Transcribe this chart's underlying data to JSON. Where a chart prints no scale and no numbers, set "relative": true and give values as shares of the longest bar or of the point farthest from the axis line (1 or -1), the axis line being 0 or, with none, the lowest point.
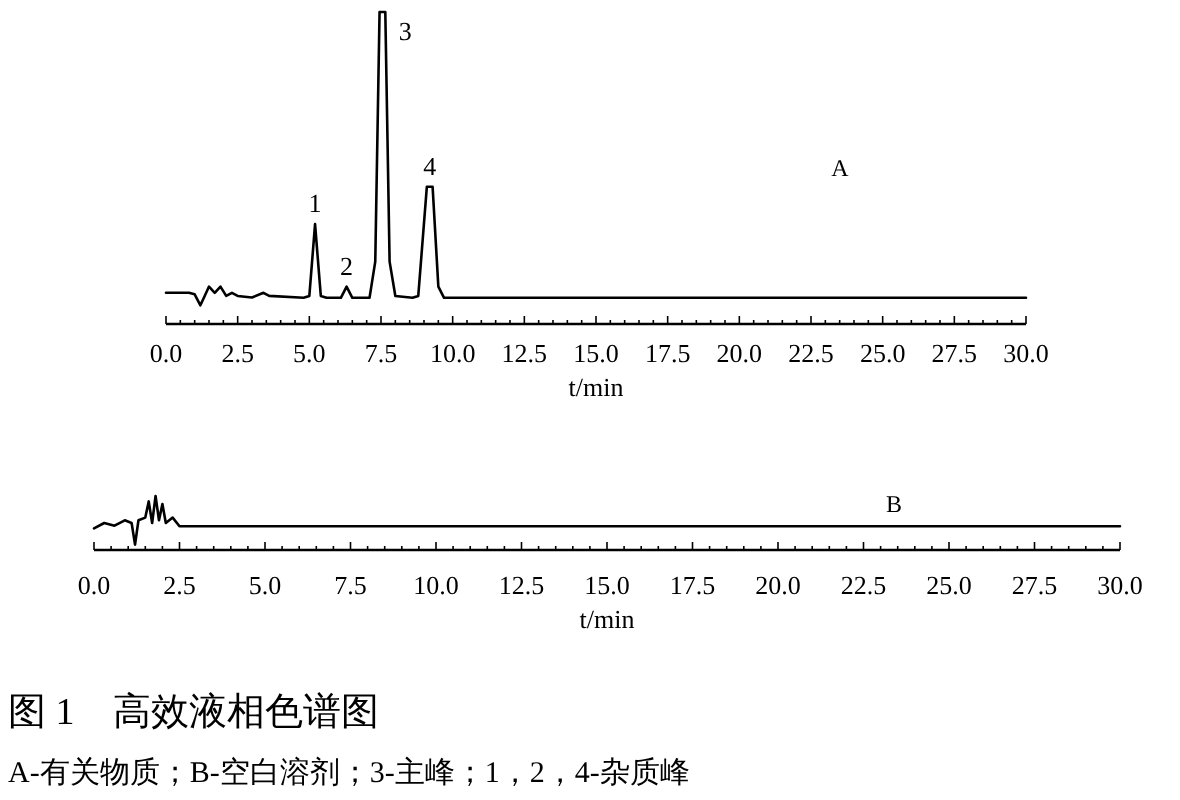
{
  "chart_data": [
    {
      "type": "line",
      "relative": true,
      "xlabel": "t/min",
      "xlim": [
        0,
        30
      ],
      "xticks": [
        {
          "value": 0,
          "label": "0.0"
        },
        {
          "value": 0.5,
          "label": null
        },
        {
          "value": 1,
          "label": null
        },
        {
          "value": 1.5,
          "label": null
        },
        {
          "value": 2,
          "label": null
        },
        {
          "value": 2.5,
          "label": "2.5"
        },
        {
          "value": 3,
          "label": null
        },
        {
          "value": 3.5,
          "label": null
        },
        {
          "value": 4,
          "label": null
        },
        {
          "value": 4.5,
          "label": null
        },
        {
          "value": 5,
          "label": "5.0"
        },
        {
          "value": 5.5,
          "label": null
        },
        {
          "value": 6,
          "label": null
        },
        {
          "value": 6.5,
          "label": null
        },
        {
          "value": 7,
          "label": null
        },
        {
          "value": 7.5,
          "label": "7.5"
        },
        {
          "value": 8,
          "label": null
        },
        {
          "value": 8.5,
          "label": null
        },
        {
          "value": 9,
          "label": null
        },
        {
          "value": 9.5,
          "label": null
        },
        {
          "value": 10,
          "label": "10.0"
        },
        {
          "value": 10.5,
          "label": null
        },
        {
          "value": 11,
          "label": null
        },
        {
          "value": 11.5,
          "label": null
        },
        {
          "value": 12,
          "label": null
        },
        {
          "value": 12.5,
          "label": "12.5"
        },
        {
          "value": 13,
          "label": null
        },
        {
          "value": 13.5,
          "label": null
        },
        {
          "value": 14,
          "label": null
        },
        {
          "value": 14.5,
          "label": null
        },
        {
          "value": 15,
          "label": "15.0"
        },
        {
          "value": 15.5,
          "label": null
        },
        {
          "value": 16,
          "label": null
        },
        {
          "value": 16.5,
          "label": null
        },
        {
          "value": 17,
          "label": null
        },
        {
          "value": 17.5,
          "label": "17.5"
        },
        {
          "value": 18,
          "label": null
        },
        {
          "value": 18.5,
          "label": null
        },
        {
          "value": 19,
          "label": null
        },
        {
          "value": 19.5,
          "label": null
        },
        {
          "value": 20,
          "label": "20.0"
        },
        {
          "value": 20.5,
          "label": null
        },
        {
          "value": 21,
          "label": null
        },
        {
          "value": 21.5,
          "label": null
        },
        {
          "value": 22,
          "label": null
        },
        {
          "value": 22.5,
          "label": "22.5"
        },
        {
          "value": 23,
          "label": null
        },
        {
          "value": 23.5,
          "label": null
        },
        {
          "value": 24,
          "label": null
        },
        {
          "value": 24.5,
          "label": null
        },
        {
          "value": 25,
          "label": "25.0"
        },
        {
          "value": 25.5,
          "label": null
        },
        {
          "value": 26,
          "label": null
        },
        {
          "value": 26.5,
          "label": null
        },
        {
          "value": 27,
          "label": null
        },
        {
          "value": 27.5,
          "label": "27.5"
        },
        {
          "value": 28,
          "label": null
        },
        {
          "value": 28.5,
          "label": null
        },
        {
          "value": 29,
          "label": null
        },
        {
          "value": 29.5,
          "label": null
        },
        {
          "value": 30,
          "label": "30.0"
        }
      ],
      "series": [
        {
          "color": "#000000",
          "x": [
            0,
            0.8,
            1.0,
            1.2,
            1.35,
            1.5,
            1.7,
            1.9,
            2.1,
            2.3,
            2.5,
            3.0,
            3.4,
            3.6,
            4.8,
            5.0,
            5.2,
            5.4,
            5.6,
            6.1,
            6.3,
            6.5,
            7.1,
            7.3,
            7.45,
            7.65,
            7.8,
            8.0,
            8.6,
            8.8,
            9.1,
            9.3,
            9.5,
            9.7,
            30
          ],
          "values": [
            0.1,
            0.1,
            0.095,
            0.06,
            0.09,
            0.12,
            0.1,
            0.12,
            0.09,
            0.1,
            0.09,
            0.085,
            0.1,
            0.09,
            0.084,
            0.09,
            0.32,
            0.09,
            0.084,
            0.084,
            0.12,
            0.084,
            0.084,
            0.2,
            1.0,
            1.0,
            0.2,
            0.09,
            0.084,
            0.09,
            0.44,
            0.44,
            0.12,
            0.084,
            0.084
          ]
        }
      ],
      "annotations": [
        "A",
        {
          "text": "1",
          "x": 5.2,
          "y": 0.32
        },
        {
          "text": "2",
          "x": 6.3,
          "y": 0.12
        },
        {
          "text": "3",
          "x": 7.65,
          "y": 1.0
        },
        {
          "text": "4",
          "x": 9.2,
          "y": 0.44
        }
      ]
    },
    {
      "type": "line",
      "relative": true,
      "xlabel": "t/min",
      "xlim": [
        0,
        30
      ],
      "xticks": [
        {
          "value": 0,
          "label": "0.0"
        },
        {
          "value": 0.5,
          "label": null
        },
        {
          "value": 1,
          "label": null
        },
        {
          "value": 1.5,
          "label": null
        },
        {
          "value": 2,
          "label": null
        },
        {
          "value": 2.5,
          "label": "2.5"
        },
        {
          "value": 3,
          "label": null
        },
        {
          "value": 3.5,
          "label": null
        },
        {
          "value": 4,
          "label": null
        },
        {
          "value": 4.5,
          "label": null
        },
        {
          "value": 5,
          "label": "5.0"
        },
        {
          "value": 5.5,
          "label": null
        },
        {
          "value": 6,
          "label": null
        },
        {
          "value": 6.5,
          "label": null
        },
        {
          "value": 7,
          "label": null
        },
        {
          "value": 7.5,
          "label": "7.5"
        },
        {
          "value": 8,
          "label": null
        },
        {
          "value": 8.5,
          "label": null
        },
        {
          "value": 9,
          "label": null
        },
        {
          "value": 9.5,
          "label": null
        },
        {
          "value": 10,
          "label": "10.0"
        },
        {
          "value": 10.5,
          "label": null
        },
        {
          "value": 11,
          "label": null
        },
        {
          "value": 11.5,
          "label": null
        },
        {
          "value": 12,
          "label": null
        },
        {
          "value": 12.5,
          "label": "12.5"
        },
        {
          "value": 13,
          "label": null
        },
        {
          "value": 13.5,
          "label": null
        },
        {
          "value": 14,
          "label": null
        },
        {
          "value": 14.5,
          "label": null
        },
        {
          "value": 15,
          "label": "15.0"
        },
        {
          "value": 15.5,
          "label": null
        },
        {
          "value": 16,
          "label": null
        },
        {
          "value": 16.5,
          "label": null
        },
        {
          "value": 17,
          "label": null
        },
        {
          "value": 17.5,
          "label": "17.5"
        },
        {
          "value": 18,
          "label": null
        },
        {
          "value": 18.5,
          "label": null
        },
        {
          "value": 19,
          "label": null
        },
        {
          "value": 19.5,
          "label": null
        },
        {
          "value": 20,
          "label": "20.0"
        },
        {
          "value": 20.5,
          "label": null
        },
        {
          "value": 21,
          "label": null
        },
        {
          "value": 21.5,
          "label": null
        },
        {
          "value": 22,
          "label": null
        },
        {
          "value": 22.5,
          "label": "22.5"
        },
        {
          "value": 23,
          "label": null
        },
        {
          "value": 23.5,
          "label": null
        },
        {
          "value": 24,
          "label": null
        },
        {
          "value": 24.5,
          "label": null
        },
        {
          "value": 25,
          "label": "25.0"
        },
        {
          "value": 25.5,
          "label": null
        },
        {
          "value": 26,
          "label": null
        },
        {
          "value": 26.5,
          "label": null
        },
        {
          "value": 27,
          "label": null
        },
        {
          "value": 27.5,
          "label": "27.5"
        },
        {
          "value": 28,
          "label": null
        },
        {
          "value": 28.5,
          "label": null
        },
        {
          "value": 29,
          "label": null
        },
        {
          "value": 29.5,
          "label": null
        },
        {
          "value": 30,
          "label": "30.0"
        }
      ],
      "series": [
        {
          "color": "#000000",
          "x": [
            0,
            0.3,
            0.6,
            0.9,
            1.1,
            1.2,
            1.3,
            1.5,
            1.6,
            1.7,
            1.8,
            1.9,
            2.0,
            2.1,
            2.3,
            2.5,
            30
          ],
          "values": [
            0.4,
            0.5,
            0.45,
            0.55,
            0.5,
            0.1,
            0.55,
            0.6,
            0.9,
            0.5,
            1.0,
            0.55,
            0.85,
            0.5,
            0.6,
            0.44,
            0.44
          ]
        }
      ],
      "annotations": [
        "B",
        "图 1　高效液相色谱图",
        "A-有关物质；B-空白溶剂；3-主峰；1，2，4-杂质峰"
      ]
    }
  ]
}
